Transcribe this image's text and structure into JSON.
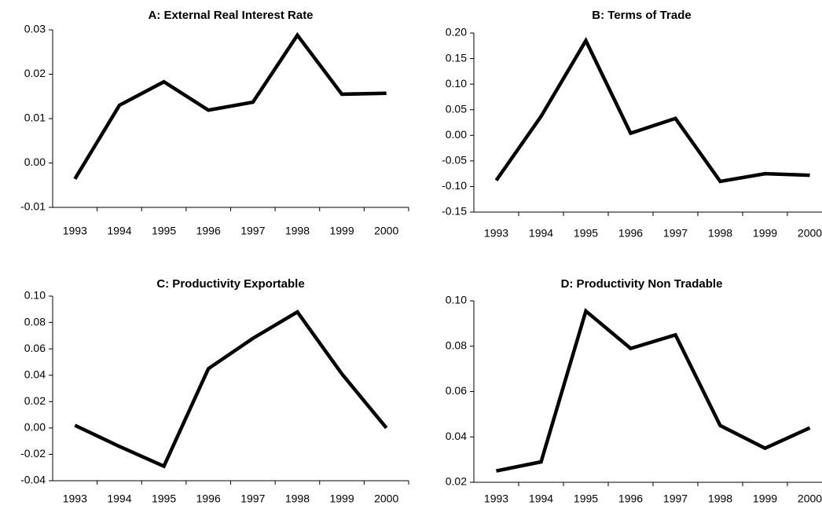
{
  "chart_data": [
    {
      "type": "line",
      "title": "A:  External Real Interest Rate",
      "categories": [
        "1993",
        "1994",
        "1995",
        "1996",
        "1997",
        "1998",
        "1999",
        "2000"
      ],
      "series": [
        {
          "color": "#000000",
          "values": [
            -0.0036,
            0.013,
            0.0183,
            0.0119,
            0.0137,
            0.0288,
            0.0155,
            0.0157
          ]
        }
      ],
      "ylim": [
        -0.01,
        0.03
      ],
      "yticks": [
        {
          "value": -0.01,
          "label": "-0.01"
        },
        {
          "value": 0,
          "label": "0.00"
        },
        {
          "value": 0.01,
          "label": "0.01"
        },
        {
          "value": 0.02,
          "label": "0.02"
        },
        {
          "value": 0.03,
          "label": "0.03"
        }
      ]
    },
    {
      "type": "line",
      "title": "B:  Terms of Trade",
      "categories": [
        "1993",
        "1994",
        "1995",
        "1996",
        "1997",
        "1998",
        "1999",
        "2000"
      ],
      "series": [
        {
          "color": "#000000",
          "values": [
            -0.088,
            0.037,
            0.185,
            0.004,
            0.033,
            -0.09,
            -0.075,
            -0.078
          ]
        }
      ],
      "ylim": [
        -0.15,
        0.2
      ],
      "yticks": [
        {
          "value": -0.15,
          "label": "-0.15"
        },
        {
          "value": -0.1,
          "label": "-0.10"
        },
        {
          "value": -0.05,
          "label": "-0.05"
        },
        {
          "value": 0,
          "label": "0.00"
        },
        {
          "value": 0.05,
          "label": "0.05"
        },
        {
          "value": 0.1,
          "label": "0.10"
        },
        {
          "value": 0.15,
          "label": "0.15"
        },
        {
          "value": 0.2,
          "label": "0.20"
        }
      ]
    },
    {
      "type": "line",
      "title": "C:  Productivity Exportable",
      "categories": [
        "1993",
        "1994",
        "1995",
        "1996",
        "1997",
        "1998",
        "1999",
        "2000"
      ],
      "series": [
        {
          "color": "#000000",
          "values": [
            0.002,
            -0.014,
            -0.029,
            0.045,
            0.068,
            0.088,
            0.041,
            0.0
          ]
        }
      ],
      "ylim": [
        -0.04,
        0.1
      ],
      "yticks": [
        {
          "value": -0.04,
          "label": "-0.04"
        },
        {
          "value": -0.02,
          "label": "-0.02"
        },
        {
          "value": 0,
          "label": "0.00"
        },
        {
          "value": 0.02,
          "label": "0.02"
        },
        {
          "value": 0.04,
          "label": "0.04"
        },
        {
          "value": 0.06,
          "label": "0.06"
        },
        {
          "value": 0.08,
          "label": "0.08"
        },
        {
          "value": 0.1,
          "label": "0.10"
        }
      ]
    },
    {
      "type": "line",
      "title": "D:  Productivity Non Tradable",
      "categories": [
        "1993",
        "1994",
        "1995",
        "1996",
        "1997",
        "1998",
        "1999",
        "2000"
      ],
      "series": [
        {
          "color": "#000000",
          "values": [
            0.025,
            0.029,
            0.0955,
            0.079,
            0.085,
            0.045,
            0.035,
            0.044
          ]
        }
      ],
      "ylim": [
        0.02,
        0.1
      ],
      "yticks": [
        {
          "value": 0.02,
          "label": "0.02"
        },
        {
          "value": 0.04,
          "label": "0.04"
        },
        {
          "value": 0.06,
          "label": "0.06"
        },
        {
          "value": 0.08,
          "label": "0.08"
        },
        {
          "value": 0.1,
          "label": "0.10"
        }
      ]
    }
  ]
}
